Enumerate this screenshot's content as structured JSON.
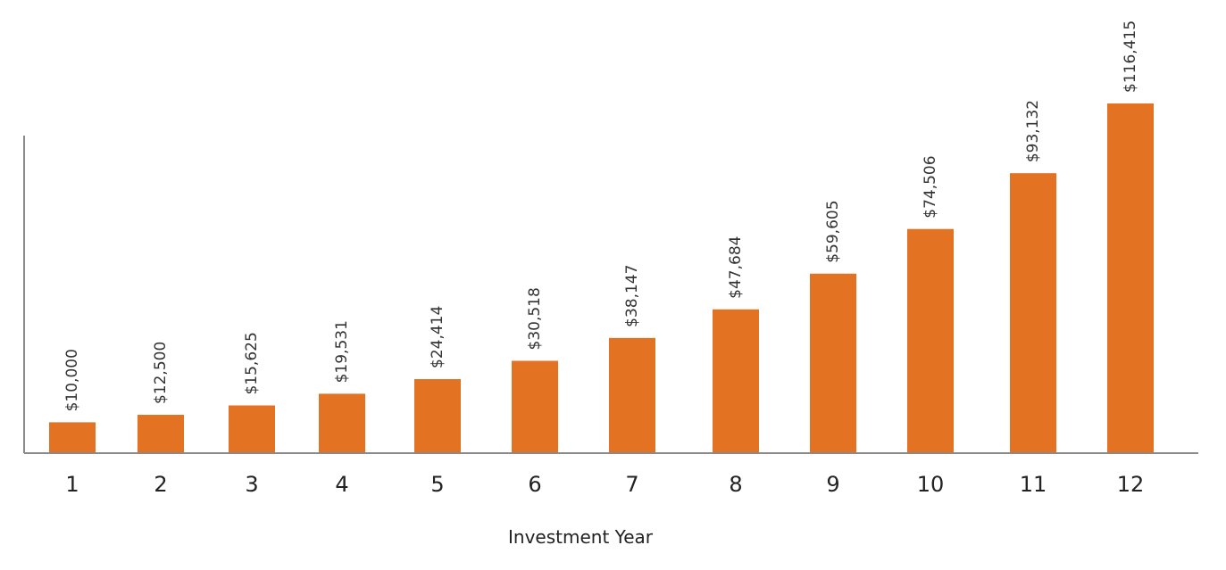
{
  "chart_data": {
    "type": "bar",
    "categories": [
      "1",
      "2",
      "3",
      "4",
      "5",
      "6",
      "7",
      "8",
      "9",
      "10",
      "11",
      "12"
    ],
    "values": [
      10000,
      12500,
      15625,
      19531,
      24414,
      30518,
      38147,
      47684,
      59605,
      74506,
      93132,
      116415
    ],
    "value_labels": [
      "$10,000",
      "$12,500",
      "$15,625",
      "$19,531",
      "$24,414",
      "$30,518",
      "$38,147",
      "$47,684",
      "$59,605",
      "$74,506",
      "$93,132",
      "$116,415"
    ],
    "xlabel": "Investment Year",
    "ylabel": "",
    "ylim": [
      0,
      117000
    ],
    "grid": false,
    "legend": "none",
    "colors": {
      "bar": "#e37222",
      "axis": "#8a8a8a",
      "text": "#222222"
    }
  }
}
